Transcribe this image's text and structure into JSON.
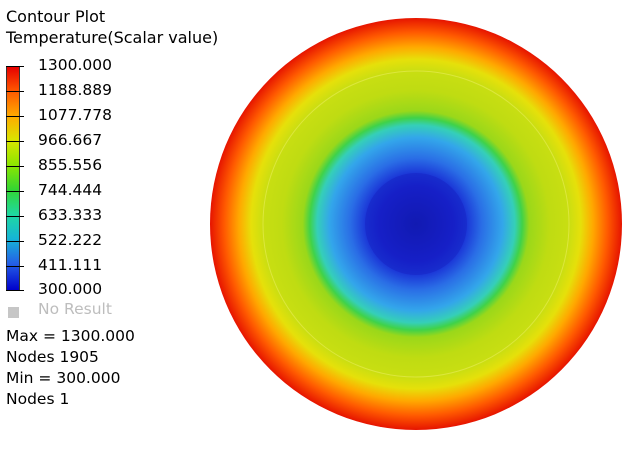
{
  "header": {
    "title": "Contour Plot",
    "subtitle": "Temperature(Scalar value)"
  },
  "legend": {
    "labels": [
      "1300.000",
      "1188.889",
      "1077.778",
      "966.667",
      "855.556",
      "744.444",
      "633.333",
      "522.222",
      "411.111",
      "300.000"
    ],
    "colors": [
      "#e60000",
      "#ff5a00",
      "#ffaa00",
      "#d9e600",
      "#8ce600",
      "#33d633",
      "#1fd9a0",
      "#16b5d6",
      "#2460e6",
      "#0000cc"
    ],
    "no_result_label": "No Result",
    "no_result_color": "#c6c6c6"
  },
  "stats": {
    "max": "Max = 1300.000",
    "max_nodes": "Nodes 1905",
    "min": "Min = 300.000",
    "min_nodes": "Nodes 1"
  }
}
